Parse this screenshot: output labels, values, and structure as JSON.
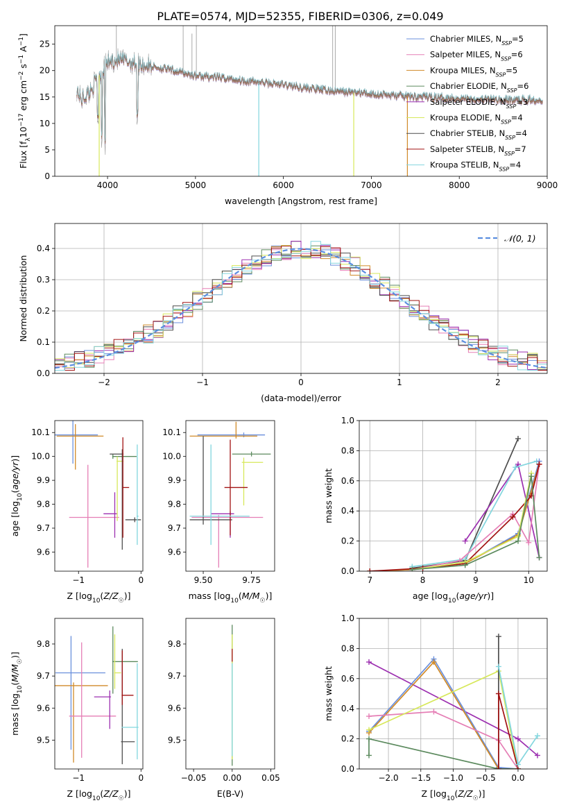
{
  "figure": {
    "title": "PLATE=0574, MJD=52355, FIBERID=0306, z=0.049"
  },
  "colors": {
    "Chabrier MILES": "#6a8fdc",
    "Salpeter MILES": "#e57eb5",
    "Kroupa MILES": "#d08a28",
    "Chabrier ELODIE": "#5c8a5e",
    "Salpeter ELODIE": "#9c2fb0",
    "Kroupa ELODIE": "#d7e85a",
    "Chabrier STELIB": "#4d4d4d",
    "Salpeter STELIB": "#a11212",
    "Kroupa STELIB": "#82d6de",
    "gaussian": "#5b8ee0",
    "grid": "#b0b0b0",
    "spectrum_gray": "#9e9e9e"
  },
  "chart_data": [
    {
      "id": "spectrum",
      "type": "line",
      "xlabel": "wavelength [Angstrom, rest frame]",
      "ylabel": "Flux [f_λ10^-17 erg cm^-2 s^-1 A^-1]",
      "xlim": [
        3400,
        9000
      ],
      "ylim": [
        0,
        28.5
      ],
      "xticks": [
        4000,
        5000,
        6000,
        7000,
        8000,
        9000
      ],
      "yticks": [
        0,
        5,
        10,
        15,
        20,
        25
      ],
      "grid": false,
      "legend_position": "top-right",
      "legend": [
        {
          "label": "Chabrier MILES",
          "nssp": "5",
          "color": "#6a8fdc"
        },
        {
          "label": "Salpeter MILES",
          "nssp": "6",
          "color": "#e57eb5"
        },
        {
          "label": "Kroupa MILES",
          "nssp": "5",
          "color": "#d08a28"
        },
        {
          "label": "Chabrier ELODIE",
          "nssp": "6",
          "color": "#5c8a5e"
        },
        {
          "label": "Salpeter ELODIE",
          "nssp": "3",
          "color": "#9c2fb0"
        },
        {
          "label": "Kroupa ELODIE",
          "nssp": "4",
          "color": "#d7e85a"
        },
        {
          "label": "Chabrier STELIB",
          "nssp": "4",
          "color": "#4d4d4d"
        },
        {
          "label": "Salpeter STELIB",
          "nssp": "7",
          "color": "#a11212"
        },
        {
          "label": "Kroupa STELIB",
          "nssp": "4",
          "color": "#82d6de"
        }
      ],
      "continuum": {
        "x": [
          3650,
          3700,
          3800,
          3900,
          4000,
          4100,
          4300,
          4500,
          4800,
          5000,
          5300,
          5600,
          6000,
          6500,
          7000,
          7400,
          7800,
          8200,
          8600,
          8950
        ],
        "y": [
          16.5,
          14.5,
          16.0,
          19.0,
          21.5,
          22.0,
          21.5,
          20.8,
          19.8,
          19.0,
          18.6,
          18.0,
          17.3,
          16.2,
          15.6,
          15.1,
          14.9,
          14.6,
          14.4,
          14.5
        ]
      },
      "absorption_dips": [
        {
          "x": 3935,
          "y": 7.0
        },
        {
          "x": 3970,
          "y": 6.0
        },
        {
          "x": 4340,
          "y": 11.0
        },
        {
          "x": 3890,
          "y": 11.0
        }
      ],
      "model_drops": [
        {
          "x": 3905,
          "model": "Kroupa ELODIE"
        },
        {
          "x": 5720,
          "model": "Kroupa STELIB"
        },
        {
          "x": 6800,
          "model": "Kroupa ELODIE"
        },
        {
          "x": 7410,
          "model": "Kroupa MILES"
        }
      ]
    },
    {
      "id": "residual_histogram",
      "type": "line",
      "xlabel": "(data-model)/error",
      "ylabel": "Normed distribution",
      "xlim": [
        -2.5,
        2.5
      ],
      "ylim": [
        0,
        0.48
      ],
      "xticks": [
        -2,
        -1,
        0,
        1,
        2
      ],
      "yticks": [
        0.0,
        0.1,
        0.2,
        0.3,
        0.4
      ],
      "grid": true,
      "legend_position": "top-right",
      "legend": [
        {
          "label": "𝒩(0, 1)",
          "style": "dashed"
        }
      ],
      "bin_width": 0.1,
      "bin_start": -2.5,
      "gaussian": {
        "mu": 0,
        "sigma": 1
      }
    },
    {
      "id": "age_vs_Z",
      "type": "scatter",
      "xlabel": "Z [log10(Z/Z☉)]",
      "ylabel": "age [log10(age/yr)]",
      "xlim": [
        -1.38,
        0.03
      ],
      "ylim": [
        9.52,
        10.15
      ],
      "xticks": [
        -1,
        0
      ],
      "yticks": [
        9.6,
        9.7,
        9.8,
        9.9,
        10.0,
        10.1
      ],
      "grid": false,
      "points": [
        {
          "model": "Chabrier MILES",
          "x": -1.09,
          "y": 10.09,
          "xerr": [
            0.3,
            0.4
          ],
          "yerr": [
            0.12,
            0.06
          ]
        },
        {
          "model": "Kroupa MILES",
          "x": -1.05,
          "y": 10.085,
          "xerr": [
            0.3,
            0.45
          ],
          "yerr": [
            0.14,
            0.05
          ]
        },
        {
          "model": "Salpeter MILES",
          "x": -0.85,
          "y": 9.745,
          "xerr": [
            0.3,
            0.5
          ],
          "yerr": [
            0.21,
            0.22
          ]
        },
        {
          "model": "Salpeter ELODIE",
          "x": -0.42,
          "y": 9.76,
          "xerr": [
            0.18,
            0.04
          ],
          "yerr": [
            0.1,
            0.09
          ]
        },
        {
          "model": "Chabrier ELODIE",
          "x": -0.45,
          "y": 10.0,
          "xerr": [
            0.01,
            0.38
          ],
          "yerr": [
            0.01,
            0.01
          ]
        },
        {
          "model": "Kroupa ELODIE",
          "x": -0.38,
          "y": 9.98,
          "xerr": [
            0.01,
            0.1
          ],
          "yerr": [
            0.25,
            0.02
          ]
        },
        {
          "model": "Chabrier STELIB",
          "x": -0.3,
          "y": 10.01,
          "xerr": [
            0.2,
            0.02
          ],
          "yerr": [
            0.4,
            0.02
          ]
        },
        {
          "model": "Salpeter STELIB",
          "x": -0.29,
          "y": 9.87,
          "xerr": [
            0.01,
            0.1
          ],
          "yerr": [
            0.21,
            0.21
          ]
        },
        {
          "model": "Chabrier STELIB",
          "x": -0.1,
          "y": 9.735,
          "xerr": [
            0.15,
            0.1
          ],
          "yerr": [
            0.01,
            0.01
          ]
        },
        {
          "model": "Kroupa STELIB",
          "x": -0.06,
          "y": 9.75,
          "xerr": [
            0.01,
            0.02
          ],
          "yerr": [
            0.12,
            0.3
          ]
        }
      ]
    },
    {
      "id": "age_vs_mass",
      "type": "scatter",
      "xlabel": "mass [log10(M/M☉)]",
      "ylabel": "",
      "xlim": [
        9.41,
        9.87
      ],
      "ylim": [
        9.52,
        10.15
      ],
      "xticks": [
        9.5,
        9.75
      ],
      "xticklabels": [
        "9.50",
        "9.75"
      ],
      "yticks": [
        9.6,
        9.7,
        9.8,
        9.9,
        10.0,
        10.1
      ],
      "grid": false,
      "points": [
        {
          "model": "Chabrier MILES",
          "x": 9.71,
          "y": 10.09,
          "xerr": [
            0.24,
            0.11
          ],
          "yerr": [
            0.01,
            0.01
          ]
        },
        {
          "model": "Kroupa MILES",
          "x": 9.67,
          "y": 10.085,
          "xerr": [
            0.24,
            0.11
          ],
          "yerr": [
            0.01,
            0.06
          ]
        },
        {
          "model": "Salpeter MILES",
          "x": 9.58,
          "y": 9.745,
          "xerr": [
            0.14,
            0.23
          ],
          "yerr": [
            0.21,
            0.01
          ]
        },
        {
          "model": "Salpeter ELODIE",
          "x": 9.64,
          "y": 9.76,
          "xerr": [
            0.1,
            0.02
          ],
          "yerr": [
            0.1,
            0.01
          ]
        },
        {
          "model": "Chabrier ELODIE",
          "x": 9.75,
          "y": 10.01,
          "xerr": [
            0.1,
            0.1
          ],
          "yerr": [
            0.01,
            0.01
          ]
        },
        {
          "model": "Kroupa ELODIE",
          "x": 9.71,
          "y": 9.975,
          "xerr": [
            0.01,
            0.1
          ],
          "yerr": [
            0.18,
            0.02
          ]
        },
        {
          "model": "Chabrier STELIB",
          "x": 9.5,
          "y": 9.735,
          "xerr": [
            0.07,
            0.15
          ],
          "yerr": [
            0.02,
            0.35
          ]
        },
        {
          "model": "Salpeter STELIB",
          "x": 9.64,
          "y": 9.87,
          "xerr": [
            0.03,
            0.09
          ],
          "yerr": [
            0.2,
            0.2
          ]
        },
        {
          "model": "Kroupa STELIB",
          "x": 9.54,
          "y": 9.75,
          "xerr": [
            0.11,
            0.2
          ],
          "yerr": [
            0.12,
            0.3
          ]
        }
      ]
    },
    {
      "id": "weight_vs_age",
      "type": "line",
      "xlabel": "age [log10(age/yr)]",
      "ylabel": "mass weight",
      "xlim": [
        6.8,
        10.35
      ],
      "ylim": [
        0,
        1.0
      ],
      "xticks": [
        7,
        8,
        9,
        10
      ],
      "yticks": [
        0.0,
        0.2,
        0.4,
        0.6,
        0.8,
        1.0
      ],
      "grid": true,
      "series": [
        {
          "model": "Chabrier STELIB",
          "x": [
            7.8,
            8.8,
            9.8
          ],
          "y": [
            0.02,
            0.07,
            0.88
          ]
        },
        {
          "model": "Salpeter ELODIE",
          "x": [
            8.8,
            9.8,
            10.2
          ],
          "y": [
            0.2,
            0.71,
            0.09
          ]
        },
        {
          "model": "Kroupa STELIB",
          "x": [
            7.8,
            8.8,
            9.75,
            10.15
          ],
          "y": [
            0.03,
            0.08,
            0.69,
            0.73
          ]
        },
        {
          "model": "Chabrier MILES",
          "x": [
            7.0,
            7.8,
            8.8,
            9.8,
            10.2
          ],
          "y": [
            0.0,
            0.01,
            0.05,
            0.25,
            0.73
          ]
        },
        {
          "model": "Kroupa MILES",
          "x": [
            7.0,
            7.8,
            8.8,
            9.8,
            10.2
          ],
          "y": [
            0.0,
            0.01,
            0.05,
            0.24,
            0.71
          ]
        },
        {
          "model": "Salpeter MILES",
          "x": [
            7.8,
            8.7,
            9.7,
            10.0,
            10.2
          ],
          "y": [
            0.01,
            0.07,
            0.38,
            0.19,
            0.71
          ]
        },
        {
          "model": "Salpeter STELIB",
          "x": [
            7.0,
            8.0,
            8.8,
            9.7,
            10.05,
            10.2
          ],
          "y": [
            0.0,
            0.02,
            0.05,
            0.36,
            0.5,
            0.71
          ]
        },
        {
          "model": "Kroupa ELODIE",
          "x": [
            7.8,
            8.8,
            9.8,
            10.05
          ],
          "y": [
            0.01,
            0.06,
            0.23,
            0.65
          ]
        },
        {
          "model": "Chabrier ELODIE",
          "x": [
            7.8,
            8.8,
            9.8,
            10.05,
            10.2
          ],
          "y": [
            0.01,
            0.04,
            0.2,
            0.63,
            0.09
          ]
        }
      ]
    },
    {
      "id": "mass_vs_Z",
      "type": "scatter",
      "xlabel": "Z [log10(Z/Z☉)]",
      "ylabel": "mass [log10(M/M☉)]",
      "xlim": [
        -1.38,
        0.03
      ],
      "ylim": [
        9.41,
        9.88
      ],
      "xticks": [
        -1,
        0
      ],
      "yticks": [
        9.5,
        9.6,
        9.7,
        9.8
      ],
      "grid": false,
      "points": [
        {
          "model": "Chabrier MILES",
          "x": -1.12,
          "y": 9.71,
          "xerr": [
            0.25,
            0.55
          ],
          "yerr": [
            0.24,
            0.115
          ]
        },
        {
          "model": "Kroupa MILES",
          "x": -1.08,
          "y": 9.67,
          "xerr": [
            0.3,
            0.55
          ],
          "yerr": [
            0.24,
            0.01
          ]
        },
        {
          "model": "Salpeter MILES",
          "x": -0.95,
          "y": 9.575,
          "xerr": [
            0.2,
            0.55
          ],
          "yerr": [
            0.13,
            0.23
          ]
        },
        {
          "model": "Salpeter ELODIE",
          "x": -0.5,
          "y": 9.635,
          "xerr": [
            0.25,
            0.02
          ],
          "yerr": [
            0.1,
            0.02
          ]
        },
        {
          "model": "Chabrier ELODIE",
          "x": -0.45,
          "y": 9.745,
          "xerr": [
            0.01,
            0.4
          ],
          "yerr": [
            0.1,
            0.11
          ]
        },
        {
          "model": "Kroupa ELODIE",
          "x": -0.42,
          "y": 9.71,
          "xerr": [
            0.01,
            0.1
          ],
          "yerr": [
            0.05,
            0.12
          ]
        },
        {
          "model": "Chabrier STELIB",
          "x": -0.3,
          "y": 9.495,
          "xerr": [
            0.02,
            0.2
          ],
          "yerr": [
            0.07,
            0.29
          ]
        },
        {
          "model": "Salpeter STELIB",
          "x": -0.3,
          "y": 9.64,
          "xerr": [
            0.01,
            0.18
          ],
          "yerr": [
            0.03,
            0.14
          ]
        },
        {
          "model": "Kroupa STELIB",
          "x": -0.06,
          "y": 9.54,
          "xerr": [
            0.25,
            0.02
          ],
          "yerr": [
            0.1,
            0.2
          ]
        }
      ]
    },
    {
      "id": "mass_vs_ebv",
      "type": "scatter",
      "xlabel": "E(B-V)",
      "ylabel": "",
      "xlim": [
        -0.06,
        0.055
      ],
      "ylim": [
        9.41,
        9.88
      ],
      "xticks": [
        -0.05,
        0.0,
        0.05
      ],
      "xticklabels": [
        "−0.05",
        "0.00",
        "0.05"
      ],
      "yticks": [
        9.5,
        9.6,
        9.7,
        9.8
      ],
      "grid": false,
      "points": [
        {
          "model": "Chabrier ELODIE",
          "x": 0.0,
          "y": 9.64,
          "xerr": [
            0,
            0
          ],
          "yerr": [
            0.22,
            0.22
          ]
        },
        {
          "model": "Kroupa ELODIE",
          "x": 0.0,
          "y": 9.63,
          "xerr": [
            0,
            0
          ],
          "yerr": [
            0.19,
            0.2
          ]
        },
        {
          "model": "Salpeter STELIB",
          "x": 0.0,
          "y": 9.765,
          "xerr": [
            0,
            0
          ],
          "yerr": [
            0.02,
            0.02
          ]
        },
        {
          "model": "Kroupa STELIB",
          "x": 0.0,
          "y": 9.6,
          "xerr": [
            0,
            0
          ],
          "yerr": [
            0.15,
            0.14
          ]
        }
      ]
    },
    {
      "id": "weight_vs_Z",
      "type": "line",
      "xlabel": "Z [log10(Z/Z☉)]",
      "ylabel": "mass weight",
      "xlim": [
        -2.45,
        0.45
      ],
      "ylim": [
        0,
        1.0
      ],
      "xticks": [
        -2.0,
        -1.5,
        -1.0,
        -0.5,
        0.0
      ],
      "xticklabels": [
        "−2.0",
        "−1.5",
        "−1.0",
        "−0.5",
        "0.0"
      ],
      "yticks": [
        0.0,
        0.2,
        0.4,
        0.6,
        0.8,
        1.0
      ],
      "grid": true,
      "series": [
        {
          "model": "Salpeter ELODIE",
          "x": [
            -2.3,
            0.0,
            0.3
          ],
          "y": [
            0.71,
            0.2,
            0.09
          ]
        },
        {
          "model": "Chabrier MILES",
          "x": [
            -2.3,
            -1.3,
            -0.3,
            0.0
          ],
          "y": [
            0.25,
            0.73,
            0.01,
            0.0
          ]
        },
        {
          "model": "Kroupa MILES",
          "x": [
            -2.3,
            -1.3,
            -0.3,
            0.0
          ],
          "y": [
            0.24,
            0.71,
            0.0,
            0.0
          ]
        },
        {
          "model": "Salpeter MILES",
          "x": [
            -2.3,
            -1.3,
            -0.3,
            0.0
          ],
          "y": [
            0.35,
            0.38,
            0.19,
            0.0
          ]
        },
        {
          "model": "Kroupa ELODIE",
          "x": [
            -2.3,
            -0.3,
            0.0
          ],
          "y": [
            0.26,
            0.65,
            0.0
          ]
        },
        {
          "model": "Chabrier ELODIE",
          "x": [
            -2.3,
            -2.3,
            -0.3,
            0.0
          ],
          "y": [
            0.09,
            0.2,
            0.0,
            0.0
          ]
        },
        {
          "model": "Chabrier STELIB",
          "x": [
            -0.3,
            -0.3
          ],
          "y": [
            0.0,
            0.88
          ]
        },
        {
          "model": "Salpeter STELIB",
          "x": [
            -0.3,
            -0.3,
            0.0
          ],
          "y": [
            0.0,
            0.5,
            0.0
          ]
        },
        {
          "model": "Kroupa STELIB",
          "x": [
            -0.3,
            0.0,
            0.3
          ],
          "y": [
            0.68,
            0.03,
            0.22
          ]
        }
      ]
    }
  ]
}
